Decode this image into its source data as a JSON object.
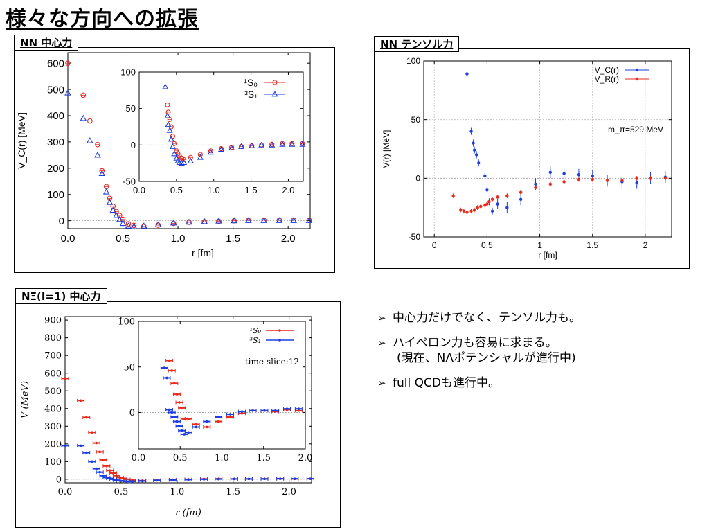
{
  "page": {
    "title": "様々な方向への拡張",
    "bullets": [
      {
        "marker": "➢",
        "text": "中心力だけでなく、テンソル力も。",
        "sub": ""
      },
      {
        "marker": "➢",
        "text": "ハイペロン力も容易に求まる。",
        "sub": "(現在、NΛポテンシャルが進行中)"
      },
      {
        "marker": "➢",
        "text": "full QCDも進行中。",
        "sub": ""
      }
    ]
  },
  "panels": [
    {
      "tab": "NN 中心力"
    },
    {
      "tab": "NN テンソル力"
    },
    {
      "tab": "NΞ(I=1) 中心力"
    }
  ],
  "colors": {
    "red": "#e8291c",
    "blue": "#1c3ee0",
    "axis": "#000000",
    "grid": "#9a9a9a"
  },
  "chart_data": [
    {
      "type": "scatter",
      "title": "",
      "xlabel": "r [fm]",
      "ylabel": "V_C(r) [MeV]",
      "xlim": [
        0,
        2.2
      ],
      "ylim": [
        -30,
        640
      ],
      "xticks": [
        "0.0",
        "0.5",
        "1.0",
        "1.5",
        "2.0"
      ],
      "yticks": [
        "0",
        "100",
        "200",
        "300",
        "400",
        "500",
        "600"
      ],
      "series": [
        {
          "name": "¹S₀",
          "color": "#e8291c",
          "marker": "circle",
          "x": [
            0.0,
            0.14,
            0.2,
            0.27,
            0.31,
            0.35,
            0.38,
            0.41,
            0.44,
            0.47,
            0.5,
            0.55,
            0.6,
            0.69,
            0.82,
            0.96,
            1.1,
            1.24,
            1.37,
            1.51,
            1.64,
            1.78,
            1.92,
            2.05,
            2.19
          ],
          "y": [
            600,
            478,
            380,
            290,
            190,
            130,
            85,
            55,
            35,
            20,
            5,
            -12,
            -18,
            -22,
            -17,
            -10,
            -6,
            -4,
            -2,
            0,
            1,
            2,
            2,
            2,
            2
          ]
        },
        {
          "name": "³S₁",
          "color": "#1c3ee0",
          "marker": "triangle",
          "x": [
            0.0,
            0.14,
            0.2,
            0.27,
            0.31,
            0.35,
            0.38,
            0.41,
            0.44,
            0.47,
            0.5,
            0.55,
            0.6,
            0.69,
            0.82,
            0.96,
            1.1,
            1.24,
            1.37,
            1.51,
            1.64,
            1.78,
            1.92,
            2.05,
            2.19
          ],
          "y": [
            487,
            390,
            305,
            250,
            180,
            110,
            70,
            40,
            20,
            5,
            -10,
            -20,
            -22,
            -20,
            -15,
            -8,
            -5,
            -3,
            -1,
            0,
            1,
            1,
            1,
            1,
            1
          ]
        }
      ],
      "inset": {
        "xlim": [
          0,
          2.2
        ],
        "ylim": [
          -50,
          100
        ],
        "xticks": [
          "0.0",
          "0.5",
          "1.0",
          "1.5",
          "2.0"
        ],
        "yticks": [
          "-50",
          "0",
          "50",
          "100"
        ],
        "series": [
          {
            "name": "¹S₀",
            "x": [
              0.38,
              0.39,
              0.41,
              0.43,
              0.45,
              0.47,
              0.5,
              0.52,
              0.54,
              0.57,
              0.6,
              0.69,
              0.82,
              0.96,
              1.1,
              1.24,
              1.37,
              1.51,
              1.64,
              1.78,
              1.92,
              2.05,
              2.19
            ],
            "y": [
              55,
              45,
              35,
              25,
              12,
              2,
              -8,
              -12,
              -15,
              -18,
              -20,
              -17,
              -13,
              -8,
              -5,
              -3,
              -2,
              -1,
              0,
              1,
              2,
              2,
              2
            ]
          },
          {
            "name": "³S₁",
            "x": [
              0.35,
              0.38,
              0.39,
              0.41,
              0.43,
              0.45,
              0.47,
              0.5,
              0.52,
              0.54,
              0.57,
              0.6,
              0.69,
              0.82,
              0.96,
              1.1,
              1.24,
              1.37,
              1.51,
              1.64,
              1.78,
              1.92,
              2.05,
              2.19
            ],
            "y": [
              80,
              40,
              28,
              20,
              8,
              -2,
              -12,
              -18,
              -22,
              -24,
              -25,
              -24,
              -22,
              -17,
              -10,
              -6,
              -4,
              -2,
              -1,
              0,
              0,
              1,
              1,
              1
            ]
          }
        ]
      }
    },
    {
      "type": "scatter",
      "title": "",
      "xlabel": "r [fm]",
      "ylabel": "V(r) [MeV]",
      "xlim": [
        -0.1,
        2.25
      ],
      "ylim": [
        -50,
        100
      ],
      "xticks": [
        "0",
        "0.5",
        "1",
        "1.5",
        "2"
      ],
      "yticks": [
        "-50",
        "0",
        "50",
        "100"
      ],
      "annotation": "m_π=529 MeV",
      "series": [
        {
          "name": "V_C(r)",
          "color": "#1c3ee0",
          "x": [
            0.31,
            0.35,
            0.37,
            0.38,
            0.4,
            0.42,
            0.48,
            0.5,
            0.52,
            0.55,
            0.6,
            0.69,
            0.82,
            0.96,
            1.1,
            1.23,
            1.37,
            1.5,
            1.64,
            1.78,
            1.92,
            2.05,
            2.19
          ],
          "y": [
            89,
            40,
            30,
            24,
            20,
            13,
            2,
            -10,
            -20,
            -28,
            -22,
            -25,
            -18,
            -5,
            5,
            4,
            3,
            2,
            -2,
            -3,
            -4,
            0,
            1
          ],
          "err": [
            3,
            3,
            3,
            3,
            3,
            3,
            3,
            3,
            3,
            3,
            4,
            5,
            5,
            5,
            5,
            5,
            5,
            5,
            5,
            5,
            5,
            5,
            5
          ]
        },
        {
          "name": "V_R(r)",
          "color": "#e8291c",
          "x": [
            0.18,
            0.25,
            0.28,
            0.31,
            0.35,
            0.38,
            0.41,
            0.44,
            0.48,
            0.5,
            0.52,
            0.55,
            0.6,
            0.69,
            0.82,
            0.96,
            1.1,
            1.23,
            1.37,
            1.5,
            1.64,
            1.78,
            1.92,
            2.05,
            2.19
          ],
          "y": [
            -15,
            -27,
            -28,
            -29,
            -28,
            -27,
            -25,
            -24,
            -23,
            -22,
            -20,
            -18,
            -16,
            -15,
            -12,
            -8,
            -5,
            -3,
            -1,
            -1,
            -2,
            -2,
            0,
            0,
            0
          ],
          "err": [
            2,
            2,
            2,
            2,
            2,
            2,
            2,
            2,
            2,
            2,
            2,
            2,
            2,
            2,
            2,
            2,
            2,
            2,
            2,
            2,
            2,
            2,
            2,
            2,
            2
          ]
        }
      ]
    },
    {
      "type": "scatter",
      "title": "",
      "xlabel": "r (fm)",
      "ylabel": "V (MeV)",
      "xlim": [
        0,
        2.2
      ],
      "ylim": [
        -20,
        920
      ],
      "xticks": [
        "0.0",
        "0.5",
        "1.0",
        "1.5",
        "2.0"
      ],
      "yticks": [
        "0",
        "100",
        "200",
        "300",
        "400",
        "500",
        "600",
        "700",
        "800",
        "900"
      ],
      "series": [
        {
          "name": "¹S₀",
          "color": "#e8291c",
          "x": [
            0.0,
            0.14,
            0.19,
            0.24,
            0.28,
            0.31,
            0.34,
            0.37,
            0.4,
            0.43,
            0.46,
            0.49,
            0.52,
            0.55,
            0.6,
            0.69,
            0.82,
            0.96,
            1.1,
            1.24,
            1.37,
            1.51,
            1.64,
            1.78,
            1.92,
            2.05,
            2.19
          ],
          "y": [
            570,
            445,
            350,
            265,
            205,
            155,
            110,
            75,
            50,
            35,
            20,
            10,
            5,
            0,
            -5,
            -8,
            -5,
            -2,
            0,
            2,
            3,
            2,
            2,
            3,
            3,
            2,
            3
          ]
        },
        {
          "name": "³S₁",
          "color": "#1c3ee0",
          "x": [
            0.0,
            0.14,
            0.19,
            0.24,
            0.28,
            0.31,
            0.34,
            0.37,
            0.4,
            0.43,
            0.46,
            0.49,
            0.52,
            0.55,
            0.6,
            0.69,
            0.82,
            0.96,
            1.1,
            1.24,
            1.37,
            1.51,
            1.64,
            1.78,
            1.92,
            2.05,
            2.19
          ],
          "y": [
            190,
            190,
            150,
            100,
            60,
            40,
            20,
            10,
            5,
            0,
            -5,
            -8,
            -10,
            -12,
            -12,
            -10,
            -6,
            -4,
            -2,
            0,
            1,
            2,
            2,
            2,
            3,
            3,
            3
          ]
        }
      ],
      "inset": {
        "xlim": [
          0,
          2.0
        ],
        "ylim": [
          -40,
          100
        ],
        "xticks": [
          "0.0",
          "0.5",
          "1.0",
          "1.5",
          "2.0"
        ],
        "yticks": [
          "0",
          "50",
          "100"
        ],
        "annotation": "time-slice:12",
        "series": [
          {
            "name": "¹S₀",
            "x": [
              0.37,
              0.4,
              0.43,
              0.46,
              0.49,
              0.52,
              0.55,
              0.6,
              0.69,
              0.82,
              0.96,
              1.1,
              1.24,
              1.37,
              1.51,
              1.64,
              1.78,
              1.92
            ],
            "y": [
              57,
              46,
              32,
              20,
              11,
              5,
              -7,
              -7,
              -13,
              -16,
              -10,
              -5,
              -1,
              2,
              2,
              1,
              3,
              2
            ]
          },
          {
            "name": "³S₁",
            "x": [
              0.31,
              0.34,
              0.37,
              0.4,
              0.43,
              0.46,
              0.49,
              0.52,
              0.55,
              0.6,
              0.69,
              0.82,
              0.96,
              1.1,
              1.24,
              1.37,
              1.51,
              1.64,
              1.78,
              1.92
            ],
            "y": [
              49,
              38,
              3,
              0,
              -5,
              -10,
              -15,
              -20,
              -24,
              -22,
              -16,
              -10,
              -5,
              -2,
              1,
              2,
              2,
              2,
              4,
              4
            ]
          }
        ]
      }
    }
  ]
}
